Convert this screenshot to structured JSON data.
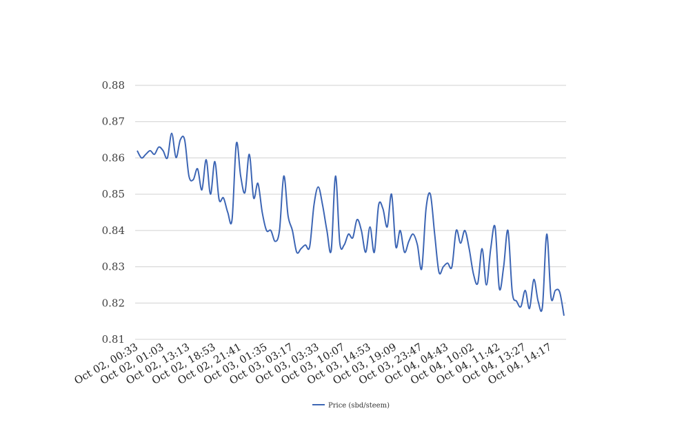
{
  "chart_data": {
    "type": "line",
    "title": "",
    "xlabel": "",
    "ylabel": "",
    "ylim": [
      0.81,
      0.88
    ],
    "yticks": [
      "0.81",
      "0.82",
      "0.83",
      "0.84",
      "0.85",
      "0.86",
      "0.87",
      "0.88"
    ],
    "grid": true,
    "legend_position": "bottom-center",
    "x_tick_labels": [
      "Oct 02, 00:33",
      "Oct 02, 01:03",
      "Oct 02, 13:13",
      "Oct 02, 18:53",
      "Oct 02, 21:41",
      "Oct 03, 01:35",
      "Oct 03, 03:17",
      "Oct 03, 03:33",
      "Oct 03, 10:07",
      "Oct 03, 14:53",
      "Oct 03, 19:09",
      "Oct 03, 23:47",
      "Oct 04, 04:43",
      "Oct 04, 10:02",
      "Oct 04, 11:42",
      "Oct 04, 13:27",
      "Oct 04, 14:17"
    ],
    "series": [
      {
        "name": "Price (sbd/steem)",
        "color": "#3c65b4",
        "values": [
          0.862,
          0.86,
          0.861,
          0.862,
          0.861,
          0.863,
          0.862,
          0.86,
          0.8668,
          0.8601,
          0.865,
          0.865,
          0.855,
          0.854,
          0.857,
          0.8512,
          0.8595,
          0.85,
          0.859,
          0.8485,
          0.849,
          0.845,
          0.843,
          0.864,
          0.855,
          0.8505,
          0.861,
          0.849,
          0.853,
          0.845,
          0.84,
          0.84,
          0.837,
          0.84,
          0.855,
          0.844,
          0.84,
          0.834,
          0.835,
          0.836,
          0.8355,
          0.847,
          0.852,
          0.847,
          0.84,
          0.8345,
          0.855,
          0.8365,
          0.836,
          0.839,
          0.838,
          0.843,
          0.84,
          0.834,
          0.841,
          0.834,
          0.847,
          0.846,
          0.841,
          0.85,
          0.8355,
          0.84,
          0.834,
          0.837,
          0.839,
          0.836,
          0.8295,
          0.846,
          0.85,
          0.839,
          0.8285,
          0.83,
          0.831,
          0.83,
          0.84,
          0.8365,
          0.84,
          0.835,
          0.828,
          0.8255,
          0.835,
          0.825,
          0.835,
          0.841,
          0.824,
          0.83,
          0.84,
          0.823,
          0.8205,
          0.819,
          0.8235,
          0.8185,
          0.8265,
          0.8205,
          0.819,
          0.839,
          0.8215,
          0.8235,
          0.823,
          0.8165
        ]
      }
    ]
  }
}
